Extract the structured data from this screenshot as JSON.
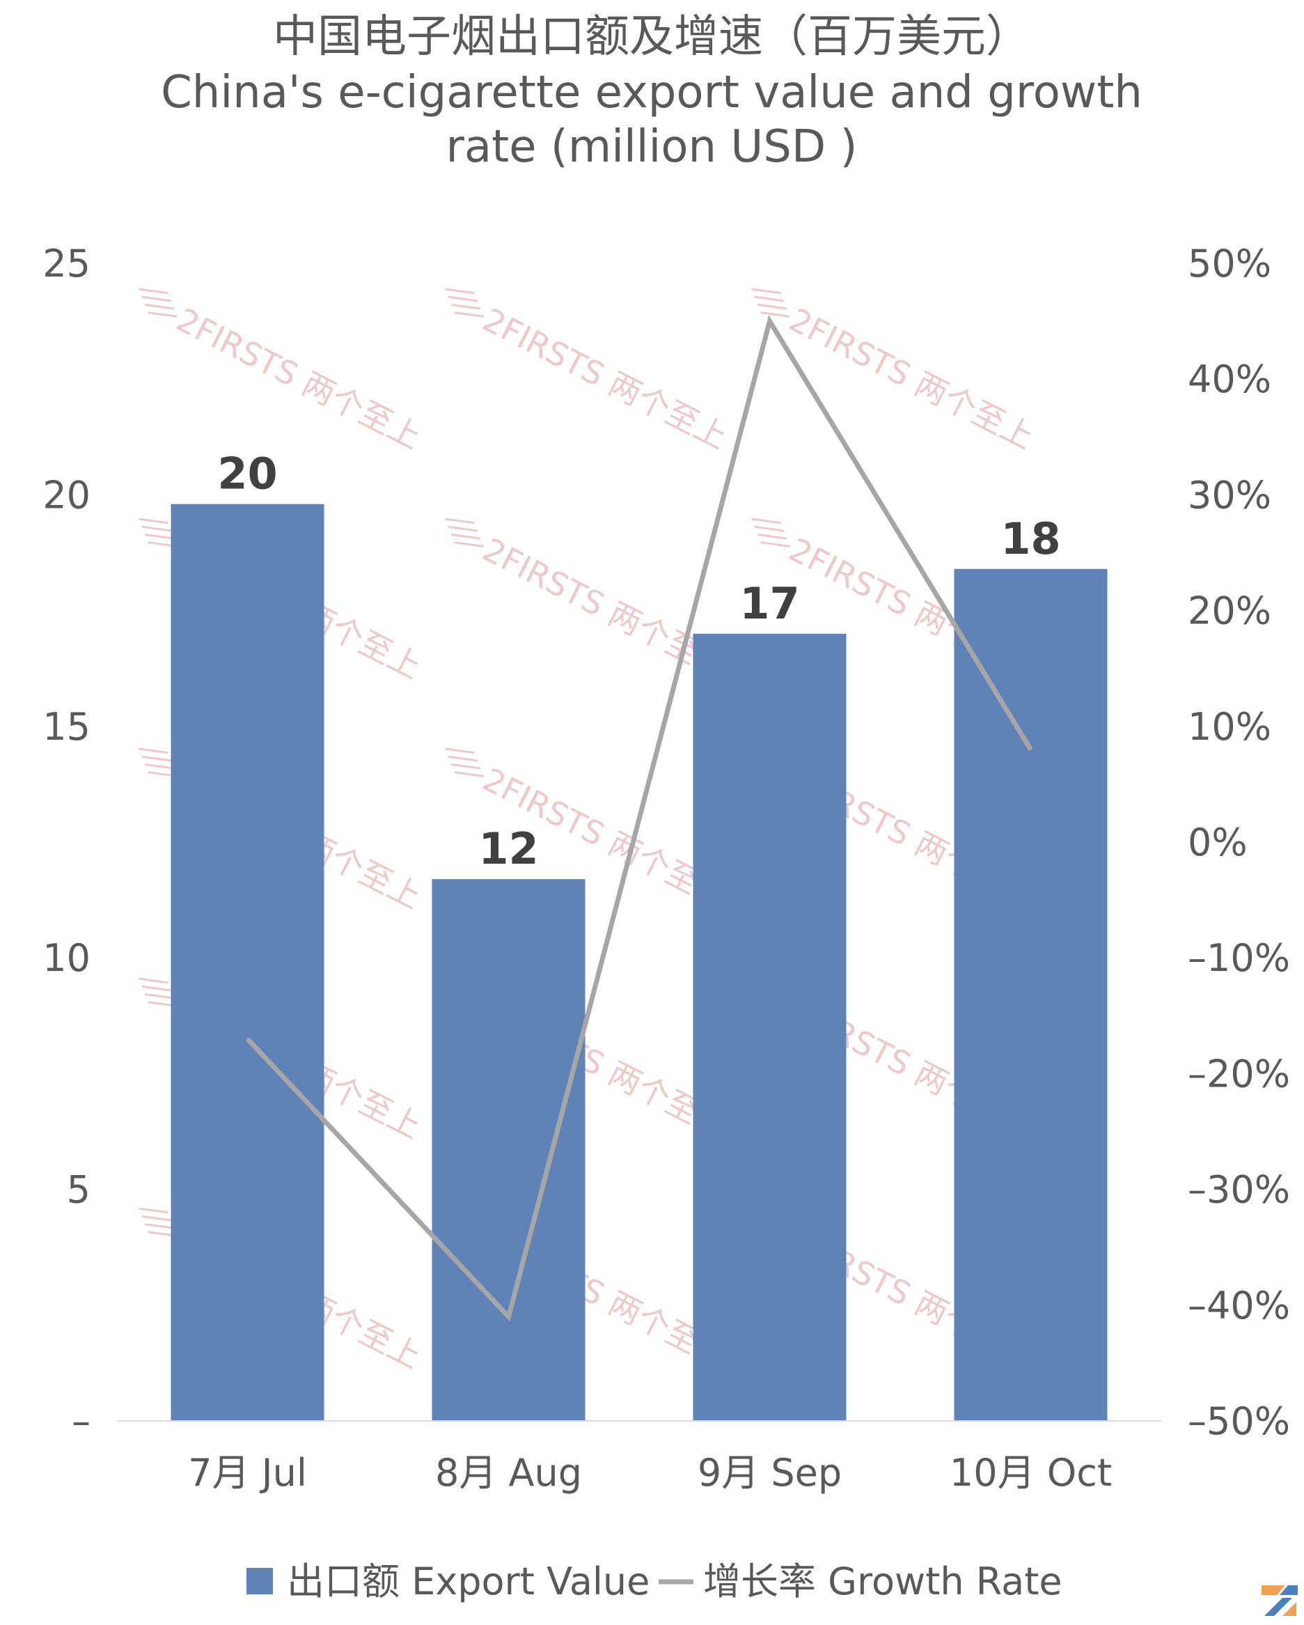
{
  "chart_data": {
    "type": "bar",
    "title": "中国电子烟出口额及增速（百万美元）",
    "subtitle_lines": [
      "China's e-cigarette export value and growth",
      "rate (million USD )"
    ],
    "categories": [
      "7月 Jul",
      "8月 Aug",
      "9月 Sep",
      "10月 Oct"
    ],
    "series": [
      {
        "name": "出口额 Export Value",
        "type": "bar",
        "axis": "left",
        "color": "#6083b7",
        "values": [
          19.8,
          11.7,
          17.0,
          18.4
        ],
        "data_labels": [
          "20",
          "12",
          "17",
          "18"
        ]
      },
      {
        "name": "增长率 Growth Rate",
        "type": "line",
        "axis": "right",
        "color": "#a6a6a6",
        "values": [
          -17,
          -41,
          45,
          8
        ]
      }
    ],
    "y_left": {
      "min": 0,
      "max": 25,
      "ticks": [
        0,
        5,
        10,
        15,
        20,
        25
      ],
      "tick_labels": [
        "–",
        "5",
        "10",
        "15",
        "20",
        "25"
      ]
    },
    "y_right": {
      "min": -50,
      "max": 50,
      "ticks": [
        -50,
        -40,
        -30,
        -20,
        -10,
        0,
        10,
        20,
        30,
        40,
        50
      ],
      "tick_labels": [
        "–50%",
        "–40%",
        "–30%",
        "–20%",
        "–10%",
        "0%",
        "10%",
        "20%",
        "30%",
        "40%",
        "50%"
      ]
    },
    "grid": false,
    "legend_position": "bottom-center"
  },
  "watermark": {
    "text": "2FIRSTS 两个至上"
  }
}
